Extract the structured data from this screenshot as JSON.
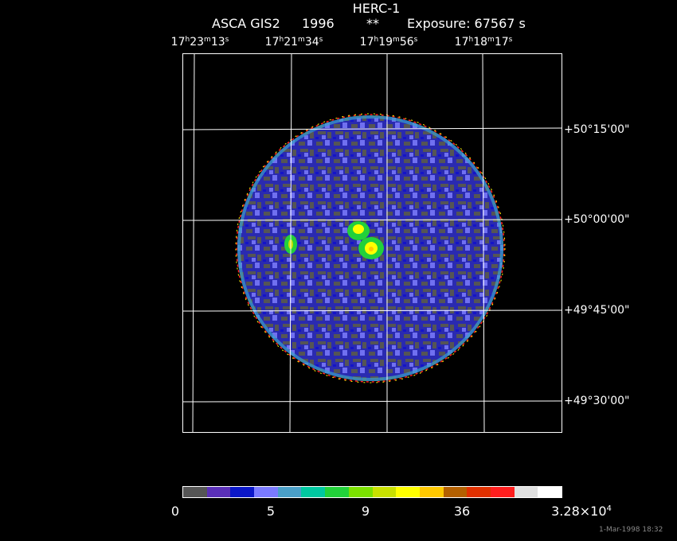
{
  "header": {
    "title": "HERC-1",
    "instrument": "ASCA GIS2",
    "year": "1996",
    "marker": "**",
    "exposure": "Exposure: 67567 s"
  },
  "ra_ticks": [
    {
      "h": "17",
      "m": "23",
      "s": "13"
    },
    {
      "h": "17",
      "m": "21",
      "s": "34"
    },
    {
      "h": "17",
      "m": "19",
      "s": "56"
    },
    {
      "h": "17",
      "m": "18",
      "s": "17"
    }
  ],
  "dec_ticks": [
    "+50°15'00\"",
    "+50°00'00\"",
    "+49°45'00\"",
    "+49°30'00\""
  ],
  "colorbar": {
    "colors": [
      "#555555",
      "#5a2fb8",
      "#0b17c8",
      "#7a7aff",
      "#4a9fc8",
      "#00c8a0",
      "#22d13a",
      "#7be000",
      "#c8e000",
      "#ffff00",
      "#ffc800",
      "#b46000",
      "#e03000",
      "#ff1e1e",
      "#e0e0e0",
      "#ffffff"
    ],
    "labels": [
      "0",
      "5",
      "9",
      "36",
      "3.28×10"
    ],
    "label_exponent": "4"
  },
  "footer": "1-Mar-1998 18:32"
}
